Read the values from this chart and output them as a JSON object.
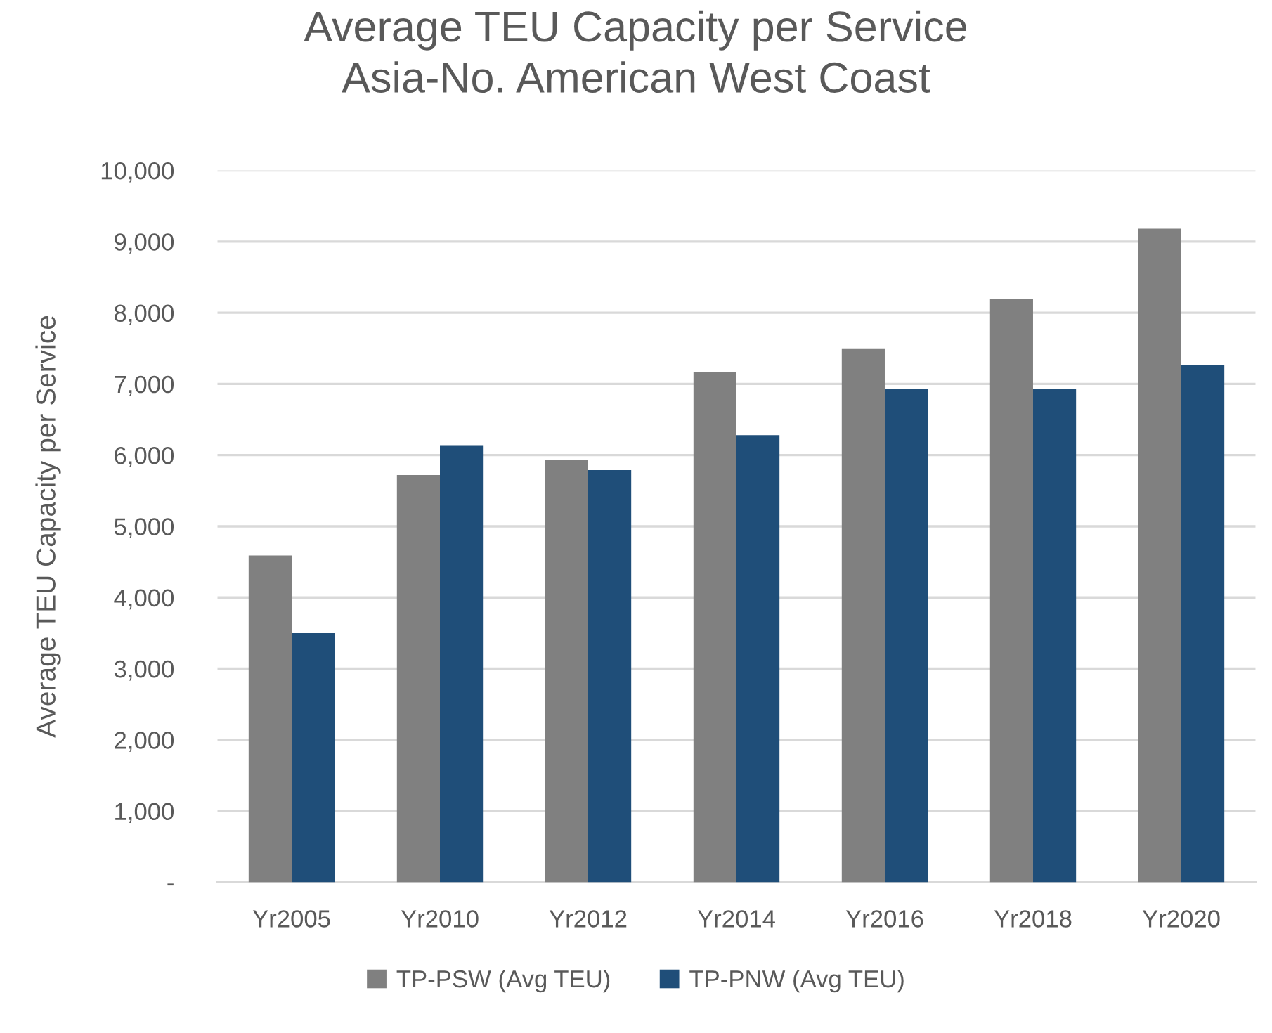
{
  "chart_data": {
    "type": "bar",
    "title": "Average TEU Capacity per Service\nAsia-No. American West Coast",
    "ylabel": "Average TEU Capacity per Service",
    "categories": [
      "Yr2005",
      "Yr2010",
      "Yr2012",
      "Yr2014",
      "Yr2016",
      "Yr2018",
      "Yr2020"
    ],
    "series": [
      {
        "name": "TP-PSW (Avg TEU)",
        "color": "#808080",
        "values": [
          4590,
          5720,
          5930,
          7170,
          7500,
          8190,
          9180
        ]
      },
      {
        "name": "TP-PNW (Avg TEU)",
        "color": "#1f4e79",
        "values": [
          3500,
          6140,
          5790,
          6280,
          6930,
          6930,
          7260
        ]
      }
    ],
    "ylim": [
      0,
      10000
    ],
    "yticks": [
      {
        "value": 0,
        "label": "-"
      },
      {
        "value": 1000,
        "label": "1,000"
      },
      {
        "value": 2000,
        "label": "2,000"
      },
      {
        "value": 3000,
        "label": "3,000"
      },
      {
        "value": 4000,
        "label": "4,000"
      },
      {
        "value": 5000,
        "label": "5,000"
      },
      {
        "value": 6000,
        "label": "6,000"
      },
      {
        "value": 7000,
        "label": "7,000"
      },
      {
        "value": 8000,
        "label": "8,000"
      },
      {
        "value": 9000,
        "label": "9,000"
      },
      {
        "value": 10000,
        "label": "10,000"
      }
    ],
    "grid": "y",
    "legend": "bottom"
  }
}
